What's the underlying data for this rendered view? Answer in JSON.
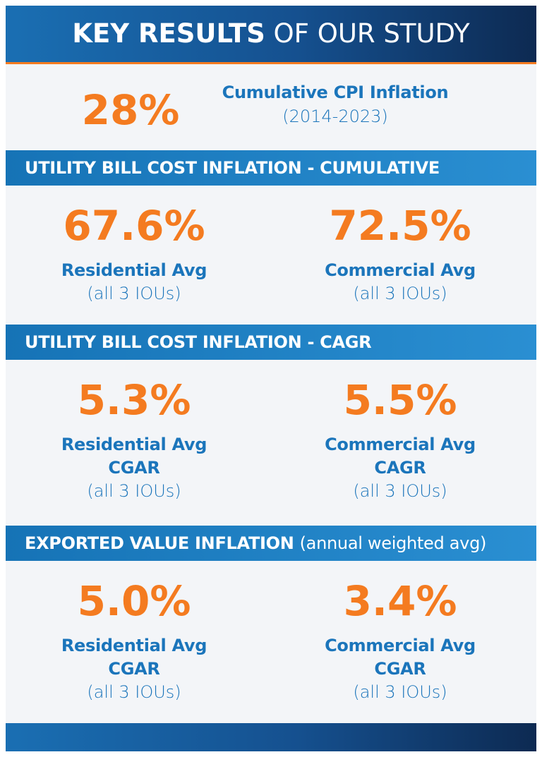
{
  "header": {
    "title_bold": "KEY RESULTS",
    "title_rest": "OF OUR STUDY"
  },
  "cpi": {
    "value": "28%",
    "label": "Cumulative CPI Inflation",
    "period": "(2014-2023)"
  },
  "sections": [
    {
      "heading": "UTILITY BILL COST INFLATION - CUMULATIVE",
      "items": [
        {
          "value": "67.6%",
          "labels": [
            "Residential Avg"
          ],
          "note": "(all 3 IOUs)"
        },
        {
          "value": "72.5%",
          "labels": [
            "Commercial Avg"
          ],
          "note": "(all 3 IOUs)"
        }
      ]
    },
    {
      "heading": "UTILITY BILL COST INFLATION - CAGR",
      "items": [
        {
          "value": "5.3%",
          "labels": [
            "Residential Avg",
            "CGAR"
          ],
          "note": "(all 3 IOUs)"
        },
        {
          "value": "5.5%",
          "labels": [
            "Commercial Avg",
            "CAGR"
          ],
          "note": "(all 3 IOUs)"
        }
      ]
    },
    {
      "heading": "EXPORTED VALUE INFLATION",
      "heading_note": "(annual weighted avg)",
      "items": [
        {
          "value": "5.0%",
          "labels": [
            "Residential Avg",
            "CGAR"
          ],
          "note": "(all 3 IOUs)"
        },
        {
          "value": "3.4%",
          "labels": [
            "Commercial Avg",
            "CGAR"
          ],
          "note": "(all 3 IOUs)"
        }
      ]
    }
  ]
}
